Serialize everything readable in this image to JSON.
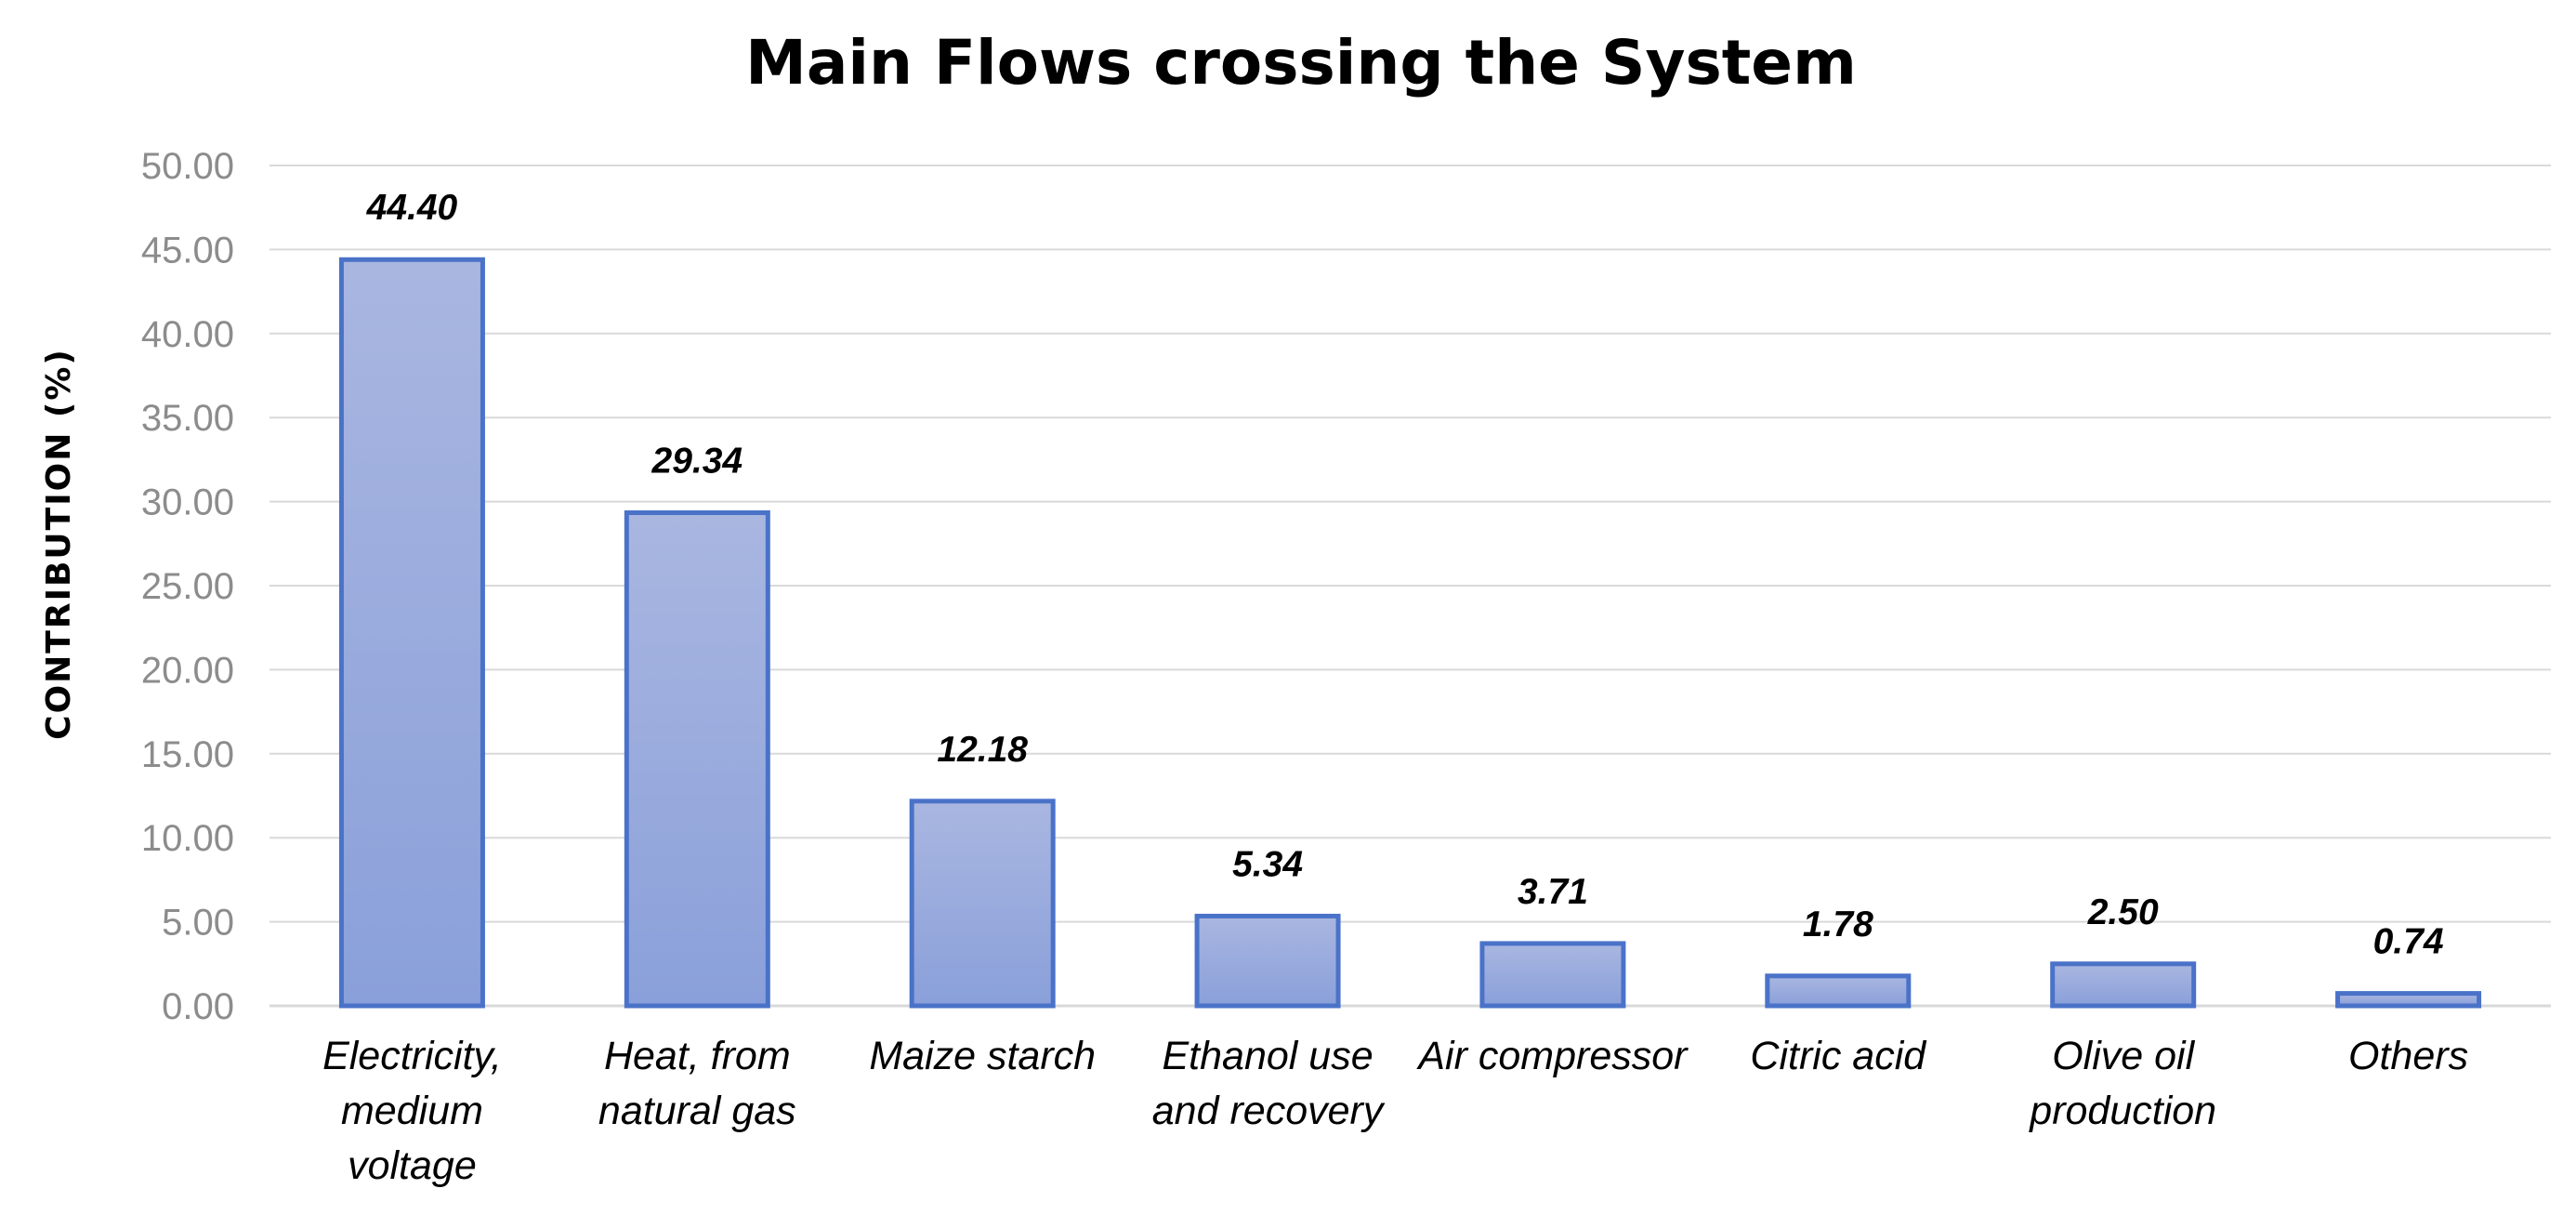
{
  "chart_data": {
    "type": "bar",
    "title": "Main Flows crossing the System",
    "xlabel": "",
    "ylabel": "CONTRIBUTION (%)",
    "ylim": [
      0,
      50
    ],
    "yticks": [
      "0.00",
      "5.00",
      "10.00",
      "15.00",
      "20.00",
      "25.00",
      "30.00",
      "35.00",
      "40.00",
      "45.00",
      "50.00"
    ],
    "ytick_values": [
      0,
      5,
      10,
      15,
      20,
      25,
      30,
      35,
      40,
      45,
      50
    ],
    "categories": [
      [
        "Electricity,",
        "medium",
        "voltage"
      ],
      [
        "Heat, from",
        "natural gas"
      ],
      [
        "Maize starch"
      ],
      [
        "Ethanol use",
        "and recovery"
      ],
      [
        "Air compressor"
      ],
      [
        "Citric acid"
      ],
      [
        "Olive oil",
        "production"
      ],
      [
        "Others"
      ]
    ],
    "values": [
      44.4,
      29.34,
      12.18,
      5.34,
      3.71,
      1.78,
      2.5,
      0.74
    ],
    "data_labels": [
      "44.40",
      "29.34",
      "12.18",
      "5.34",
      "3.71",
      "1.78",
      "2.50",
      "0.74"
    ],
    "grid": true,
    "legend": "none",
    "colors": {
      "bar_fill_top": "#a9b6e0",
      "bar_fill_bottom": "#8aa0da",
      "bar_stroke": "#4a72c8",
      "grid": "#d9d9d9",
      "tick_text": "#8c8c8c"
    }
  }
}
